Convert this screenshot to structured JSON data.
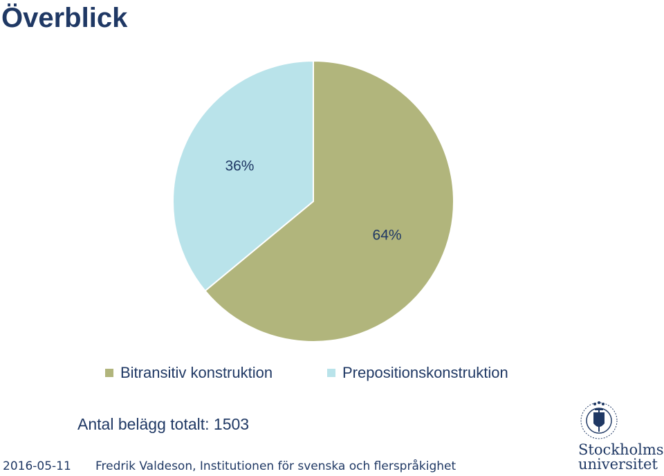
{
  "slide": {
    "title": "Överblick",
    "total_label": "Antal belägg totalt: 1503",
    "footer_date": "2016-05-11",
    "footer_author": "Fredrik Valdeson, Institutionen för svenska och flerspråkighet"
  },
  "logo": {
    "line1": "Stockholms",
    "line2": "universitet",
    "ring_text": "UNIVERSITET STOCKHOLMS"
  },
  "colors": {
    "text": "#1f3864",
    "bitransitiv": "#b1b57c",
    "preposition": "#b9e3ea"
  },
  "chart_data": {
    "type": "pie",
    "slices": [
      {
        "name": "Bitransitiv konstruktion",
        "value": 64,
        "label": "64%",
        "color": "#b1b57c"
      },
      {
        "name": "Prepositionskonstruktion",
        "value": 36,
        "label": "36%",
        "color": "#b9e3ea"
      }
    ],
    "legend_position": "bottom"
  }
}
